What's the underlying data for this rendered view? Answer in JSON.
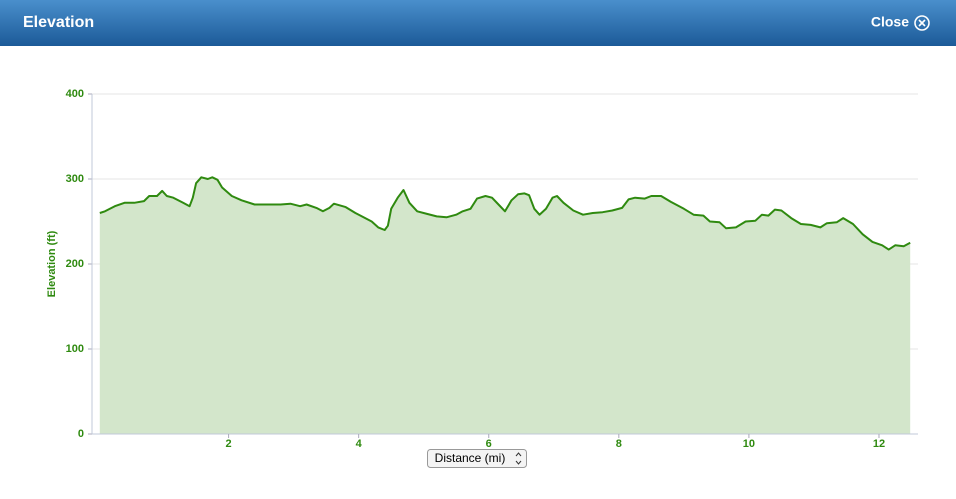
{
  "header": {
    "title": "Elevation",
    "close": "Close"
  },
  "chart_data": {
    "type": "area",
    "x_label": "Distance (mi)",
    "y_label": "Elevation (ft)",
    "x": [
      0.02,
      0.1,
      0.25,
      0.4,
      0.55,
      0.7,
      0.78,
      0.9,
      0.98,
      1.05,
      1.15,
      1.3,
      1.4,
      1.45,
      1.5,
      1.58,
      1.68,
      1.75,
      1.83,
      1.9,
      2.05,
      2.2,
      2.4,
      2.6,
      2.8,
      2.95,
      3.1,
      3.2,
      3.35,
      3.45,
      3.55,
      3.62,
      3.8,
      3.95,
      4.05,
      4.2,
      4.3,
      4.4,
      4.45,
      4.5,
      4.6,
      4.69,
      4.78,
      4.9,
      5.05,
      5.2,
      5.35,
      5.5,
      5.6,
      5.72,
      5.82,
      5.95,
      6.05,
      6.15,
      6.25,
      6.35,
      6.45,
      6.55,
      6.62,
      6.7,
      6.78,
      6.88,
      6.98,
      7.05,
      7.15,
      7.3,
      7.45,
      7.6,
      7.75,
      7.9,
      8.05,
      8.15,
      8.25,
      8.4,
      8.5,
      8.65,
      8.8,
      9.0,
      9.15,
      9.3,
      9.4,
      9.55,
      9.65,
      9.8,
      9.95,
      10.1,
      10.2,
      10.3,
      10.4,
      10.5,
      10.65,
      10.8,
      10.95,
      11.1,
      11.2,
      11.35,
      11.45,
      11.6,
      11.75,
      11.9,
      12.05,
      12.15,
      12.25,
      12.38,
      12.48
    ],
    "values": [
      260,
      262,
      268,
      272,
      272,
      274,
      280,
      280,
      286,
      280,
      278,
      272,
      268,
      278,
      295,
      302,
      300,
      302,
      299,
      290,
      280,
      275,
      270,
      270,
      270,
      271,
      268,
      270,
      266,
      262,
      266,
      271,
      267,
      260,
      256,
      250,
      243,
      240,
      245,
      265,
      278,
      287,
      272,
      262,
      259,
      256,
      255,
      258,
      262,
      265,
      277,
      280,
      278,
      270,
      262,
      275,
      282,
      283,
      281,
      265,
      258,
      265,
      278,
      280,
      272,
      263,
      258,
      260,
      261,
      263,
      266,
      276,
      278,
      277,
      280,
      280,
      273,
      265,
      258,
      257,
      250,
      249,
      242,
      243,
      250,
      251,
      258,
      257,
      264,
      263,
      254,
      247,
      246,
      243,
      248,
      249,
      254,
      247,
      235,
      226,
      222,
      217,
      222,
      221,
      225
    ],
    "color": "#2f8a10",
    "fill_color": "#d3e6cb",
    "xlim": [
      -0.1,
      12.6
    ],
    "xticks": [
      2,
      4,
      6,
      8,
      10,
      12
    ],
    "ylim": [
      0,
      400
    ],
    "yticks": [
      0,
      100,
      200,
      300,
      400
    ],
    "grid": true
  }
}
